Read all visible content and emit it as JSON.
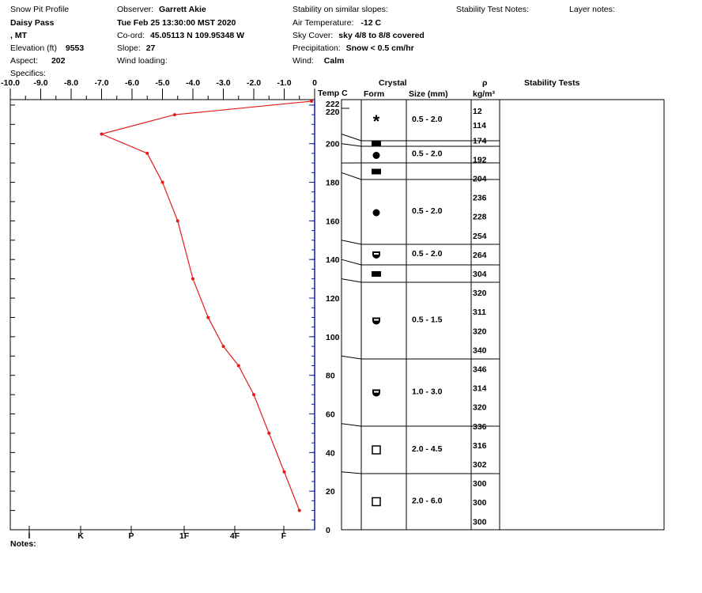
{
  "header": {
    "title": "Snow Pit Profile",
    "location": "Daisy Pass",
    "state": ", MT",
    "elevation_label": "Elevation (ft)",
    "elevation_value": "9553",
    "aspect_label": "Aspect:",
    "aspect_value": "202",
    "specifics_label": "Specifics:",
    "observer_label": "Observer:",
    "observer_value": "Garrett Akie",
    "datetime": "Tue Feb 25 13:30:00 MST 2020",
    "coord_label": "Co-ord:",
    "coord_value": "45.05113 N 109.95348 W",
    "slope_label": "Slope:",
    "slope_value": "27",
    "wind_loading_label": "Wind loading:",
    "stability_label": "Stability on similar slopes:",
    "air_temp_label": "Air Temperature:",
    "air_temp_value": "-12 C",
    "sky_label": "Sky Cover:",
    "sky_value": "sky 4/8 to 8/8 covered",
    "precip_label": "Precipitation:",
    "precip_value": "Snow < 0.5 cm/hr",
    "wind_label": "Wind:",
    "wind_value": "Calm",
    "stability_test_notes_label": "Stability Test Notes:",
    "layer_notes_label": "Layer notes:"
  },
  "columns": {
    "temp": "Temp C",
    "crystal": "Crystal",
    "form": "Form",
    "size": "Size (mm)",
    "density_symbol": "ρ",
    "density_unit": "kg/m³",
    "stability_tests": "Stability Tests"
  },
  "notes_label": "Notes:",
  "colors": {
    "temperature": "#e41b1b",
    "height_axis": "#1a1aa8",
    "frame": "#000000"
  },
  "chart_data": {
    "type": "line",
    "x_axis": {
      "label": "Temp C",
      "range": [
        -10,
        0
      ],
      "tick_labels": [
        "-10.0",
        "-9.0",
        "-8.0",
        "-7.0",
        "-6.0",
        "-5.0",
        "-4.0",
        "-3.0",
        "-2.0",
        "-1.0",
        "0"
      ]
    },
    "y_axis": {
      "range": [
        0,
        222
      ],
      "tick_labels": [
        "222",
        "220",
        "200",
        "180",
        "160",
        "140",
        "120",
        "100",
        "80",
        "60",
        "40",
        "20",
        "0"
      ]
    },
    "hardness_labels": [
      "I",
      "K",
      "P",
      "1F",
      "4F",
      "F"
    ],
    "temperature_profile": [
      {
        "temp": -0.1,
        "height": 222
      },
      {
        "temp": -4.6,
        "height": 215
      },
      {
        "temp": -7.0,
        "height": 205
      },
      {
        "temp": -5.5,
        "height": 195
      },
      {
        "temp": -5.0,
        "height": 180
      },
      {
        "temp": -4.5,
        "height": 160
      },
      {
        "temp": -4.0,
        "height": 130
      },
      {
        "temp": -3.5,
        "height": 110
      },
      {
        "temp": -3.0,
        "height": 95
      },
      {
        "temp": -2.5,
        "height": 85
      },
      {
        "temp": -2.0,
        "height": 70
      },
      {
        "temp": -1.5,
        "height": 50
      },
      {
        "temp": -1.0,
        "height": 30
      },
      {
        "temp": -0.5,
        "height": 10
      }
    ],
    "layers": [
      {
        "top": 222,
        "bottom": 205,
        "form": "star",
        "size": "0.5 - 2.0"
      },
      {
        "top": 205,
        "bottom": 200,
        "form": "rect",
        "size": ""
      },
      {
        "top": 200,
        "bottom": 190,
        "form": "dot",
        "size": "0.5 - 2.0"
      },
      {
        "top": 190,
        "bottom": 185,
        "form": "rect",
        "size": ""
      },
      {
        "top": 185,
        "bottom": 150,
        "form": "dot",
        "size": "0.5 - 2.0"
      },
      {
        "top": 150,
        "bottom": 140,
        "form": "faceted",
        "size": "0.5 - 2.0"
      },
      {
        "top": 140,
        "bottom": 130,
        "form": "rect",
        "size": ""
      },
      {
        "top": 130,
        "bottom": 90,
        "form": "faceted",
        "size": "0.5 - 1.5"
      },
      {
        "top": 90,
        "bottom": 55,
        "form": "faceted",
        "size": "1.0 - 3.0"
      },
      {
        "top": 55,
        "bottom": 30,
        "form": "square",
        "size": "2.0 - 4.5"
      },
      {
        "top": 30,
        "bottom": 0,
        "form": "square",
        "size": "2.0 - 6.0"
      }
    ],
    "densities": [
      "12",
      "114",
      "174",
      "192",
      "204",
      "236",
      "228",
      "254",
      "264",
      "304",
      "320",
      "311",
      "320",
      "340",
      "346",
      "314",
      "320",
      "336",
      "316",
      "302",
      "300",
      "300",
      "300"
    ]
  }
}
